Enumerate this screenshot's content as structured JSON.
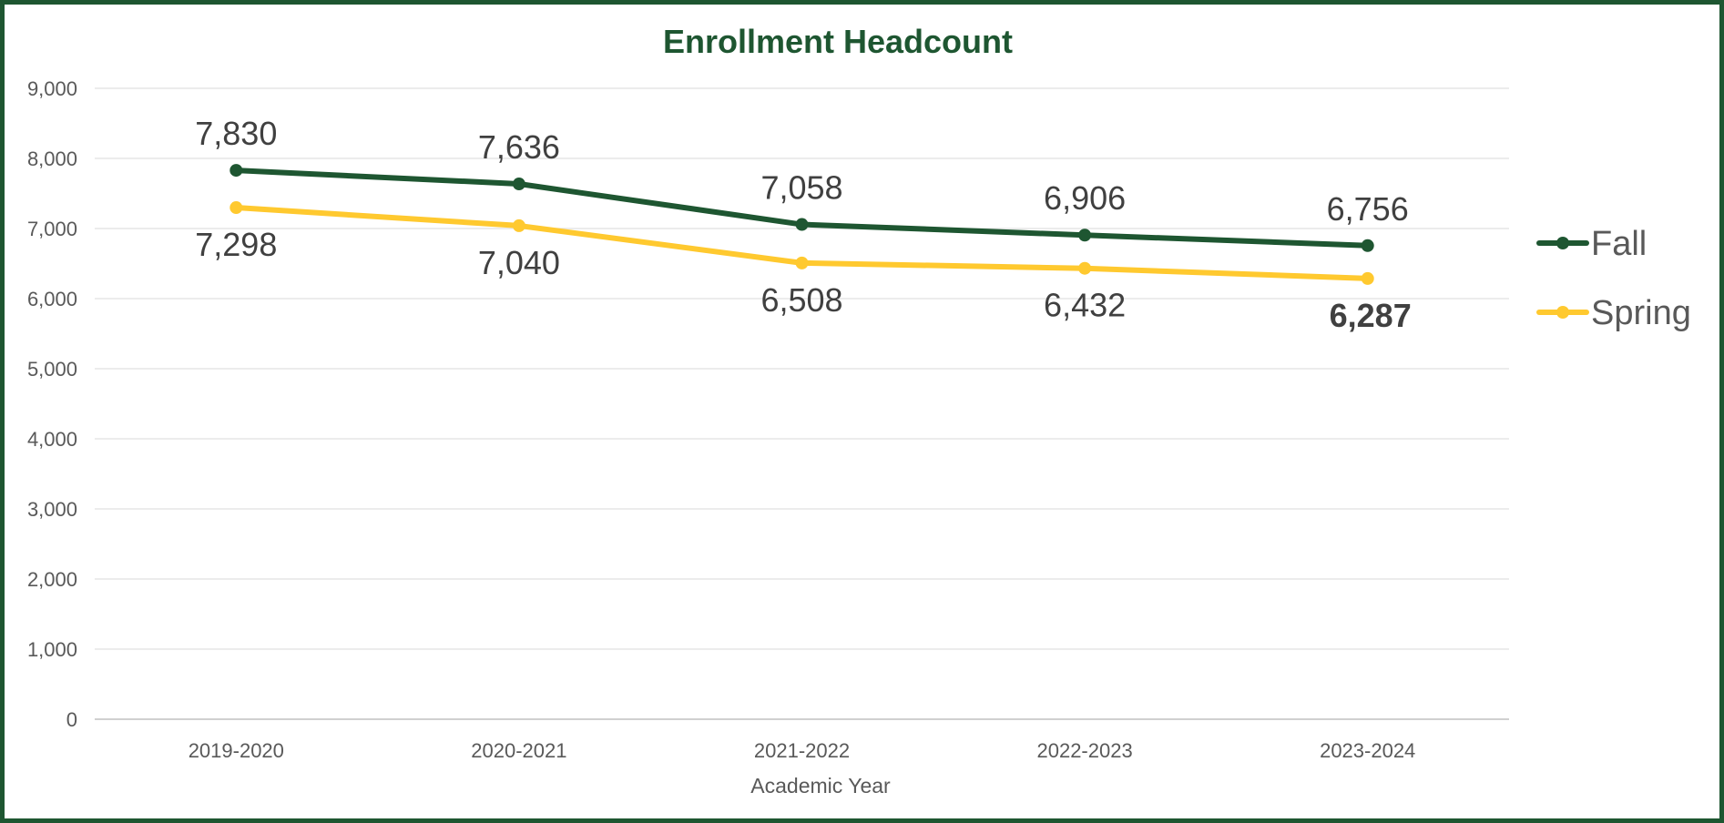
{
  "colors": {
    "border": "#1e5631",
    "title": "#1e5631",
    "fall": "#1e5631",
    "spring": "#ffc92f",
    "grid": "#e6e6e6",
    "axis": "#d0d0d0"
  },
  "chart_data": {
    "type": "line",
    "title": "Enrollment Headcount",
    "xlabel": "Academic Year",
    "ylabel": "",
    "categories": [
      "2019-2020",
      "2020-2021",
      "2021-2022",
      "2022-2023",
      "2023-2024"
    ],
    "ylim": [
      0,
      9000
    ],
    "yticks": [
      0,
      1000,
      2000,
      3000,
      4000,
      5000,
      6000,
      7000,
      8000,
      9000
    ],
    "ytick_labels": [
      "0",
      "1,000",
      "2,000",
      "3,000",
      "4,000",
      "5,000",
      "6,000",
      "7,000",
      "8,000",
      "9,000"
    ],
    "grid": true,
    "legend_position": "right",
    "series": [
      {
        "name": "Fall",
        "values": [
          7830,
          7636,
          7058,
          6906,
          6756
        ],
        "labels": [
          "7,830",
          "7,636",
          "7,058",
          "6,906",
          "6,756"
        ],
        "label_position": "above"
      },
      {
        "name": "Spring",
        "values": [
          7298,
          7040,
          6508,
          6432,
          6287
        ],
        "labels": [
          "7,298",
          "7,040",
          "6,508",
          "6,432",
          "6,287"
        ],
        "label_position": "below",
        "bold_label_index": 4
      }
    ]
  }
}
